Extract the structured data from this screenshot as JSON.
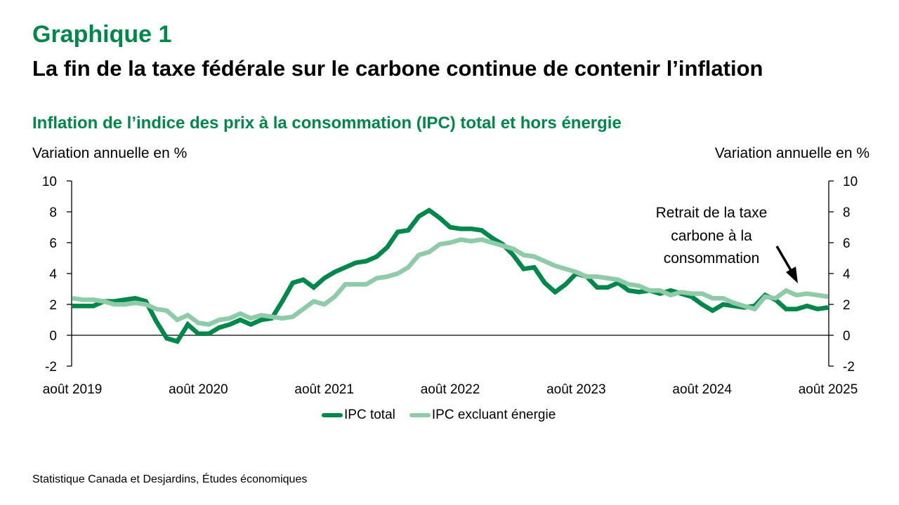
{
  "header": {
    "figure_label": "Graphique 1",
    "title": "La fin de la taxe fédérale sur le carbone continue de contenir l’inflation"
  },
  "source": "Statistique Canada et Desjardins, Études économiques",
  "colors": {
    "brand_green": "#00874A",
    "total": "#00874A",
    "excl_energy": "#8FCBA8"
  },
  "chart_data": {
    "type": "line",
    "title": "Inflation de l’indice des prix à la consommation (IPC) total et hors énergie",
    "ylabel_left": "Variation annuelle en %",
    "ylabel_right": "Variation annuelle en %",
    "xlabel": "",
    "ylim": [
      -2,
      10
    ],
    "yticks": [
      -2,
      0,
      2,
      4,
      6,
      8,
      10
    ],
    "ytick_labels": [
      "-2",
      "0",
      "2",
      "4",
      "6",
      "8",
      "10"
    ],
    "x_start": "2019-08",
    "x_end": "2025-08",
    "frequency": "monthly",
    "xtick_labels": [
      "août 2019",
      "août 2020",
      "août 2021",
      "août 2022",
      "août 2023",
      "août 2024",
      "août 2025"
    ],
    "xtick_month_index": [
      0,
      12,
      24,
      36,
      48,
      60,
      72
    ],
    "grid": false,
    "legend_position": "bottom",
    "series": [
      {
        "name": "IPC total",
        "values": [
          1.9,
          1.9,
          1.9,
          2.2,
          2.2,
          2.3,
          2.4,
          2.2,
          0.9,
          -0.2,
          -0.4,
          0.7,
          0.1,
          0.1,
          0.5,
          0.7,
          1.0,
          0.7,
          1.0,
          1.1,
          2.2,
          3.4,
          3.6,
          3.1,
          3.7,
          4.1,
          4.4,
          4.7,
          4.8,
          5.1,
          5.7,
          6.7,
          6.8,
          7.7,
          8.1,
          7.6,
          7.0,
          6.9,
          6.9,
          6.8,
          6.3,
          5.9,
          5.2,
          4.3,
          4.4,
          3.4,
          2.8,
          3.3,
          4.0,
          3.8,
          3.1,
          3.1,
          3.4,
          2.9,
          2.8,
          2.9,
          2.7,
          2.9,
          2.7,
          2.5,
          2.0,
          1.6,
          2.0,
          1.9,
          1.8,
          1.9,
          2.6,
          2.3,
          1.7,
          1.7,
          1.9,
          1.7,
          1.8
        ]
      },
      {
        "name": "IPC excluant énergie",
        "values": [
          2.4,
          2.3,
          2.3,
          2.2,
          2.0,
          2.0,
          2.1,
          2.0,
          1.7,
          1.6,
          1.0,
          1.3,
          0.8,
          0.7,
          1.0,
          1.1,
          1.4,
          1.1,
          1.3,
          1.2,
          1.1,
          1.2,
          1.7,
          2.2,
          2.0,
          2.5,
          3.3,
          3.3,
          3.3,
          3.7,
          3.8,
          4.0,
          4.4,
          5.2,
          5.4,
          5.9,
          6.0,
          6.2,
          6.1,
          6.2,
          6.0,
          5.8,
          5.6,
          5.2,
          5.1,
          4.8,
          4.5,
          4.3,
          4.1,
          3.8,
          3.8,
          3.7,
          3.6,
          3.3,
          3.2,
          2.9,
          2.9,
          2.6,
          2.8,
          2.7,
          2.7,
          2.4,
          2.4,
          2.1,
          1.9,
          1.7,
          2.5,
          2.4,
          2.9,
          2.6,
          2.7,
          2.6,
          2.5
        ]
      }
    ],
    "annotation": {
      "text_lines": [
        "Retrait de la taxe",
        "carbone à la",
        "consommation"
      ],
      "points_to": "2025-04"
    }
  }
}
